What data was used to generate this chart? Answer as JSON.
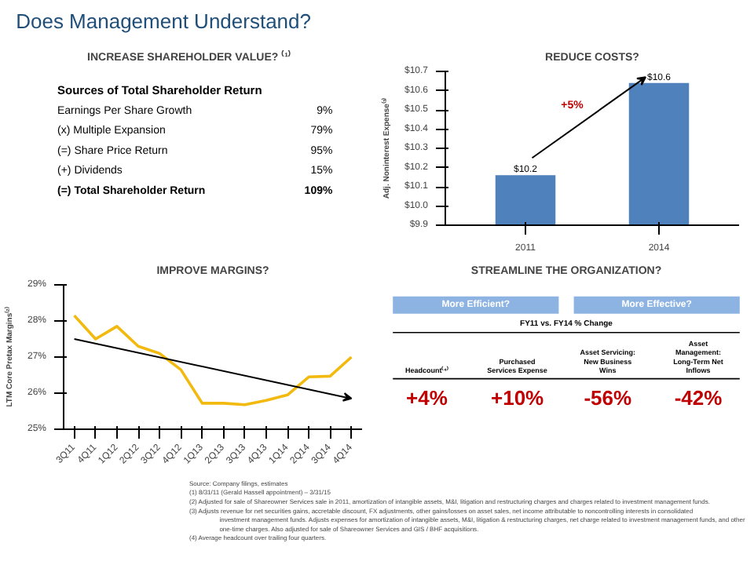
{
  "chart_data": [
    {
      "type": "other",
      "title": "Does Management Understand?",
      "annotations": [
        "Source: Company filings, estimates",
        "(1)   8/31/11 (Gerald Hassell appointment) – 3/31/15",
        "(2)   Adjusted for sale of Shareowner Services sale in 2011, amortization of intangible assets, M&I, litigation and restructuring charges and charges related to investment management funds.",
        "(3)   Adjusts revenue for net securities gains, accretable discount, FX adjustments, other gains/losses on asset sales, net income attributable to noncontrolling interests in consolidated investment management funds. Adjusts expenses for amortization of intangible assets, M&I, litigation & restructuring charges, net charge related to investment management funds, and other one-time charges. Also adjusted for sale of Shareowner Services and GIS / BHF acquisitions.",
        "(4)   Average headcount over trailing four quarters."
      ]
    },
    {
      "type": "other",
      "title": "INCREASE SHAREHOLDER VALUE? ⁽¹⁾",
      "subtitle": "Sources of Total Shareholder Return",
      "categories": [
        "Earnings Per Share Growth",
        "(x) Multiple Expansion",
        "(=) Share Price Return",
        "(+) Dividends",
        "(=) Total Shareholder Return"
      ],
      "value_labels": [
        "9%",
        "79%",
        "95%",
        "15%",
        "109%"
      ]
    },
    {
      "type": "bar",
      "title": "REDUCE COSTS?",
      "ylabel": "Adj. Noninterest Expense⁽³⁾",
      "categories": [
        "2011",
        "2014"
      ],
      "values": [
        10.16,
        10.64
      ],
      "value_labels": [
        "$10.2",
        "$10.6"
      ],
      "color": "#4f81bd",
      "ylim": [
        9.9,
        10.7
      ],
      "yticks": [
        {
          "value": 9.9,
          "label": "$9.9"
        },
        {
          "value": 10.0,
          "label": "$10.0"
        },
        {
          "value": 10.1,
          "label": "$10.1"
        },
        {
          "value": 10.2,
          "label": "$10.2"
        },
        {
          "value": 10.3,
          "label": "$10.3"
        },
        {
          "value": 10.4,
          "label": "$10.4"
        },
        {
          "value": 10.5,
          "label": "$10.5"
        },
        {
          "value": 10.6,
          "label": "$10.6"
        },
        {
          "value": 10.7,
          "label": "$10.7"
        }
      ],
      "annotations": [
        "+5%"
      ],
      "grid": false
    },
    {
      "type": "line",
      "title": "IMPROVE MARGINS?",
      "ylabel": "LTM Core Pretax Margins⁽²⁾",
      "categories": [
        "3Q11",
        "4Q11",
        "1Q12",
        "2Q12",
        "3Q12",
        "4Q12",
        "1Q13",
        "2Q13",
        "3Q13",
        "4Q13",
        "1Q14",
        "2Q14",
        "3Q14",
        "4Q14"
      ],
      "series": [
        {
          "color": "#f2b90f",
          "values": [
            28.15,
            27.5,
            27.85,
            27.3,
            27.1,
            26.65,
            25.72,
            25.72,
            25.68,
            25.8,
            25.95,
            26.45,
            26.47,
            27.0
          ]
        },
        {
          "color": "#000000",
          "values": [
            27.5,
            null,
            null,
            null,
            null,
            null,
            null,
            null,
            null,
            null,
            null,
            null,
            null,
            25.85
          ]
        }
      ],
      "ylim": [
        25,
        29
      ],
      "yticks": [
        {
          "value": 25,
          "label": "25%"
        },
        {
          "value": 26,
          "label": "26%"
        },
        {
          "value": 27,
          "label": "27%"
        },
        {
          "value": 28,
          "label": "28%"
        },
        {
          "value": 29,
          "label": "29%"
        }
      ],
      "grid": false
    },
    {
      "type": "other",
      "title": "STREAMLINE THE ORGANIZATION?",
      "subtitle": "FY11 vs. FY14 % Change",
      "annotations": [
        "More Efficient?",
        "More Effective?"
      ],
      "categories": [
        "Headcount⁽⁴⁾",
        "Purchased Services Expense",
        "Asset Servicing: New Business Wins",
        "Asset Management: Long-Term Net Inflows"
      ],
      "value_labels": [
        "+4%",
        "+10%",
        "-56%",
        "-42%"
      ]
    }
  ]
}
